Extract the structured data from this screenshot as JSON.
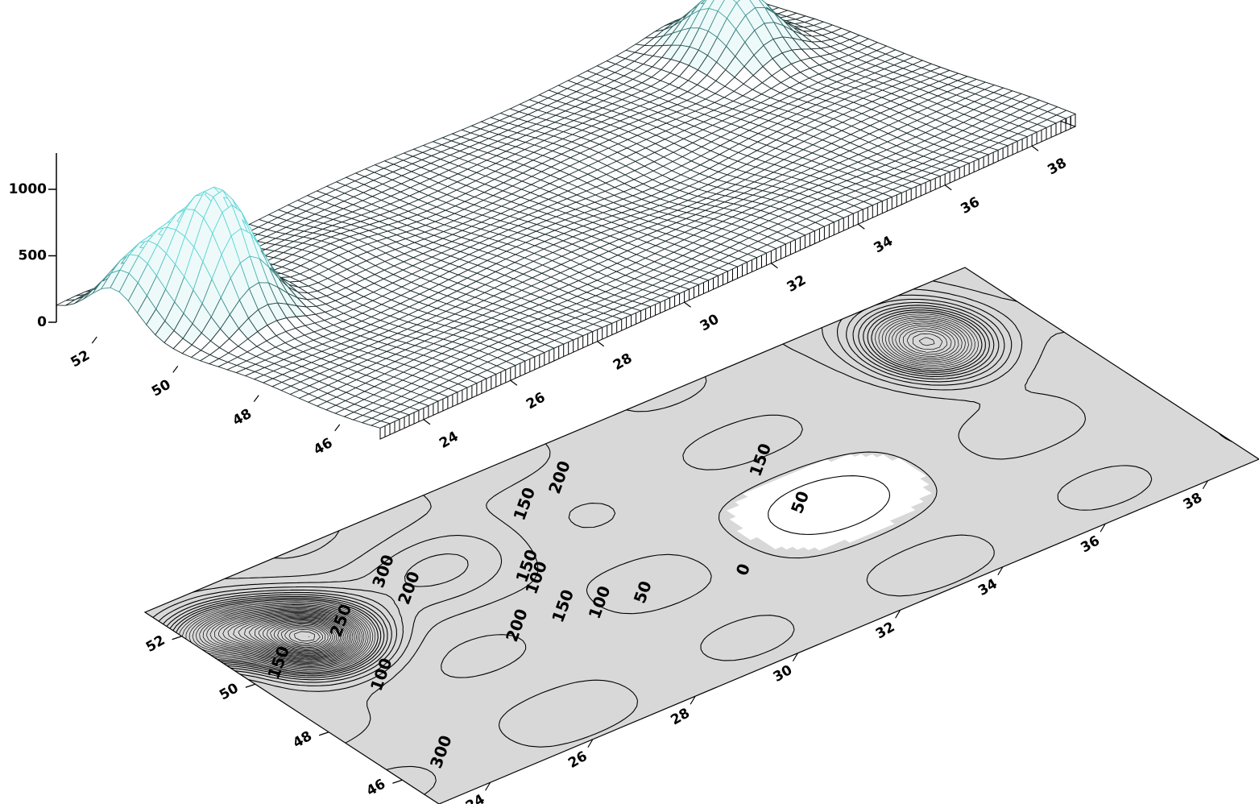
{
  "chart_data": [
    {
      "type": "surface",
      "view": "3d-wireframe",
      "z_axis": {
        "ticks": [
          "0",
          "500",
          "1000"
        ],
        "range": [
          0,
          1100
        ]
      },
      "x_axis": {
        "ticks": [
          "24",
          "26",
          "28",
          "30",
          "32",
          "34",
          "36",
          "38"
        ],
        "range": [
          23,
          39
        ]
      },
      "y_axis": {
        "ticks": [
          "46",
          "48",
          "50",
          "52"
        ],
        "range": [
          45,
          53
        ]
      },
      "peaks": [
        {
          "name": "",
          "x": 24.5,
          "y": 50.6,
          "z": 1000
        },
        {
          "name": "",
          "x": 23.6,
          "y": 51.6,
          "z": 560
        },
        {
          "name": "",
          "x": 37.2,
          "y": 51.5,
          "z": 620
        }
      ],
      "colors": {
        "mesh_low": "#1a2b2b",
        "mesh_high": "#5fd6d6",
        "skirt": "#000000",
        "background": "#ffffff"
      }
    },
    {
      "type": "contour",
      "view": "planar",
      "x_axis": {
        "ticks": [
          "24",
          "26",
          "28",
          "30",
          "32",
          "34",
          "36",
          "38"
        ],
        "range": [
          23,
          39
        ]
      },
      "y_axis": {
        "ticks": [
          "46",
          "48",
          "50",
          "52"
        ],
        "range": [
          45,
          53
        ]
      },
      "contour_labels": [
        "300",
        "250",
        "200",
        "150",
        "150",
        "100",
        "200",
        "150",
        "100",
        "50",
        "0",
        "50",
        "150",
        "200",
        "150",
        "300",
        "100"
      ],
      "colors": {
        "fill": "#d8d8d8",
        "lines": "#000000",
        "low_region": "#ffffff"
      }
    }
  ]
}
